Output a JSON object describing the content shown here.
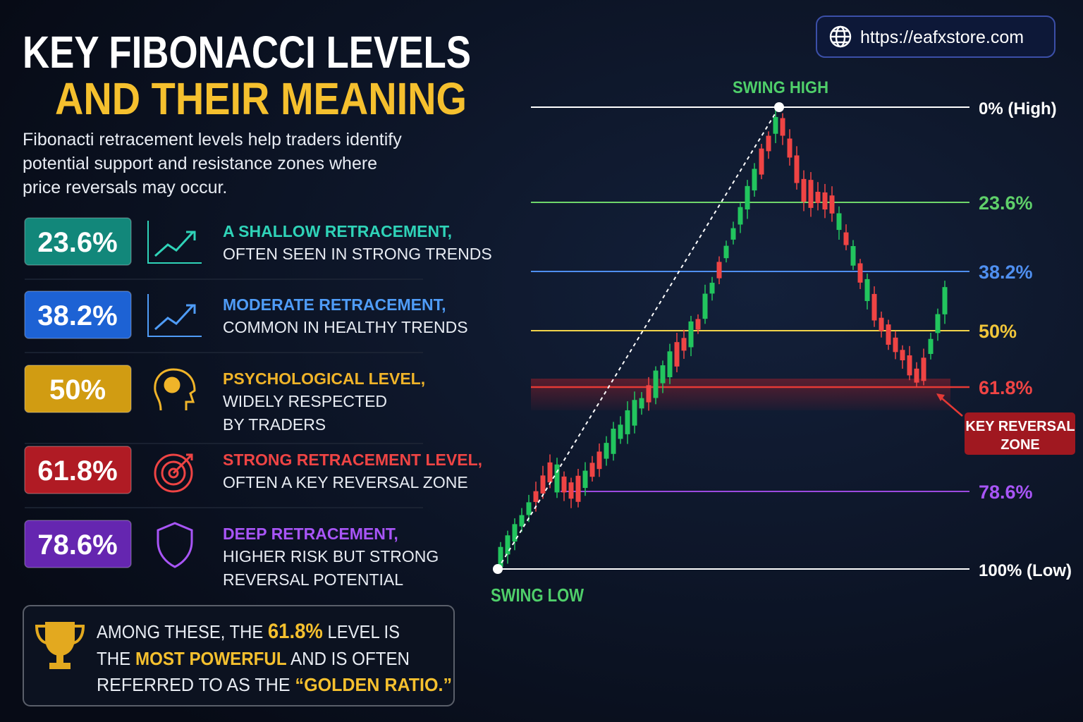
{
  "header": {
    "title_line1": "KEY FIBONACCI LEVELS",
    "title_line2": "AND THEIR MEANING",
    "intro": [
      "Fibonacti retracement levels help traders identify",
      "potential support and resistance zones where",
      "price reversals may occur."
    ],
    "url": "https://eafxstore.com"
  },
  "levels": [
    {
      "badge": "23.6%",
      "headline": "A SHALLOW RETRACEMENT,",
      "lines": [
        "OFTEN SEEN IN STRONG TRENDS"
      ]
    },
    {
      "badge": "38.2%",
      "headline": "MODERATE RETRACEMENT,",
      "lines": [
        "COMMON IN HEALTHY TRENDS"
      ]
    },
    {
      "badge": "50%",
      "headline": "PSYCHOLOGICAL LEVEL,",
      "lines": [
        "WIDELY RESPECTED",
        "BY TRADERS"
      ]
    },
    {
      "badge": "61.8%",
      "headline": "STRONG RETRACEMENT LEVEL,",
      "lines": [
        "OFTEN A KEY REVERSAL ZONE"
      ]
    },
    {
      "badge": "78.6%",
      "headline": "DEEP RETRACEMENT,",
      "lines": [
        "HIGHER RISK BUT STRONG",
        "REVERSAL POTENTIAL"
      ]
    }
  ],
  "callout": {
    "line1": [
      "AMONG THESE, THE ",
      "61.8%",
      " LEVEL IS"
    ],
    "line2": [
      "THE ",
      "MOST POWERFUL",
      " AND IS OFTEN"
    ],
    "line3": [
      "REFERRED TO AS THE ",
      "“GOLDEN RATIO.”"
    ]
  },
  "chart": {
    "swing_high": "SWING HIGH",
    "swing_low": "SWING LOW",
    "level_labels": [
      "0% (High)",
      "23.6%",
      "38.2%",
      "50%",
      "61.8%",
      "78.6%",
      "100% (Low)"
    ],
    "zone": [
      "KEY REVERSAL",
      "ZONE"
    ]
  }
}
